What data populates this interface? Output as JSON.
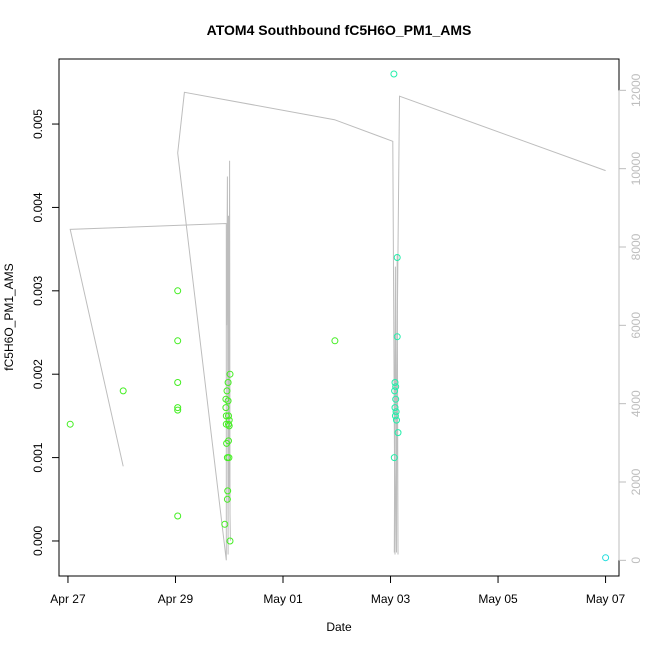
{
  "chart_data": {
    "type": "scatter",
    "title": "ATOM4 Southbound fC5H6O_PM1_AMS",
    "xlabel": "Date",
    "ylabel": "fC5H6O_PM1_AMS",
    "y2label": "",
    "xlim": [
      "2016-04-26T20:00",
      "2016-05-07T06:00"
    ],
    "ylim": [
      -0.00042,
      0.00578
    ],
    "y2lim": [
      -400,
      12800
    ],
    "x_ticks": [
      {
        "date": "2016-04-27T00:00",
        "label": "Apr 27"
      },
      {
        "date": "2016-04-29T00:00",
        "label": "Apr 29"
      },
      {
        "date": "2016-05-01T00:00",
        "label": "May 01"
      },
      {
        "date": "2016-05-03T00:00",
        "label": "May 03"
      },
      {
        "date": "2016-05-05T00:00",
        "label": "May 05"
      },
      {
        "date": "2016-05-07T00:00",
        "label": "May 07"
      }
    ],
    "y_ticks": [
      {
        "value": 0.0,
        "label": "0.000"
      },
      {
        "value": 0.001,
        "label": "0.001"
      },
      {
        "value": 0.002,
        "label": "0.002"
      },
      {
        "value": 0.003,
        "label": "0.003"
      },
      {
        "value": 0.004,
        "label": "0.004"
      },
      {
        "value": 0.005,
        "label": "0.005"
      }
    ],
    "y2_ticks": [
      {
        "value": 0,
        "label": "0"
      },
      {
        "value": 2000,
        "label": "2000"
      },
      {
        "value": 4000,
        "label": "4000"
      },
      {
        "value": 6000,
        "label": "6000"
      },
      {
        "value": 8000,
        "label": "8000"
      },
      {
        "value": 10000,
        "label": "10000"
      },
      {
        "value": 12000,
        "label": "12000"
      }
    ],
    "colors": {
      "line": "#bdbdbd",
      "points_early": "#44ee22",
      "points_late": "#22eeaa",
      "points_last": "#22dddd",
      "axis": "#000000"
    },
    "series": [
      {
        "kind": "points",
        "axis": "left",
        "points": [
          {
            "date": "2016-04-27T01:00",
            "y": 0.0014,
            "c": "points_early"
          },
          {
            "date": "2016-04-28T00:40",
            "y": 0.0018,
            "c": "points_early"
          },
          {
            "date": "2016-04-29T01:00",
            "y": 0.003,
            "c": "points_early"
          },
          {
            "date": "2016-04-29T01:00",
            "y": 0.0024,
            "c": "points_early"
          },
          {
            "date": "2016-04-29T01:00",
            "y": 0.0019,
            "c": "points_early"
          },
          {
            "date": "2016-04-29T01:00",
            "y": 0.0016,
            "c": "points_early"
          },
          {
            "date": "2016-04-29T01:00",
            "y": 0.00157,
            "c": "points_early"
          },
          {
            "date": "2016-04-29T01:00",
            "y": 0.0003,
            "c": "points_early"
          },
          {
            "date": "2016-04-29T22:00",
            "y": 0.0002,
            "c": "points_early"
          },
          {
            "date": "2016-04-29T22:30",
            "y": 0.0017,
            "c": "points_early"
          },
          {
            "date": "2016-04-29T22:30",
            "y": 0.0016,
            "c": "points_early"
          },
          {
            "date": "2016-04-29T22:40",
            "y": 0.0015,
            "c": "points_early"
          },
          {
            "date": "2016-04-29T22:40",
            "y": 0.0014,
            "c": "points_early"
          },
          {
            "date": "2016-04-29T22:50",
            "y": 0.00117,
            "c": "points_early"
          },
          {
            "date": "2016-04-29T23:00",
            "y": 0.0018,
            "c": "points_early"
          },
          {
            "date": "2016-04-29T23:10",
            "y": 0.001,
            "c": "points_early"
          },
          {
            "date": "2016-04-29T23:10",
            "y": 0.0005,
            "c": "points_early"
          },
          {
            "date": "2016-04-29T23:20",
            "y": 0.0006,
            "c": "points_early"
          },
          {
            "date": "2016-04-29T23:30",
            "y": 0.0019,
            "c": "points_early"
          },
          {
            "date": "2016-04-29T23:30",
            "y": 0.00168,
            "c": "points_early"
          },
          {
            "date": "2016-04-29T23:40",
            "y": 0.0015,
            "c": "points_early"
          },
          {
            "date": "2016-04-29T23:40",
            "y": 0.0014,
            "c": "points_early"
          },
          {
            "date": "2016-04-29T23:40",
            "y": 0.0012,
            "c": "points_early"
          },
          {
            "date": "2016-04-29T23:50",
            "y": 0.001,
            "c": "points_early"
          },
          {
            "date": "2016-04-30T00:00",
            "y": 0.00145,
            "c": "points_early"
          },
          {
            "date": "2016-04-30T00:00",
            "y": 0.00138,
            "c": "points_early"
          },
          {
            "date": "2016-04-30T00:20",
            "y": 0.002,
            "c": "points_early"
          },
          {
            "date": "2016-04-30T00:20",
            "y": 0.0,
            "c": "points_early"
          },
          {
            "date": "2016-05-01T23:10",
            "y": 0.0024,
            "c": "points_early"
          },
          {
            "date": "2016-05-03T01:30",
            "y": 0.0056,
            "c": "points_late"
          },
          {
            "date": "2016-05-03T03:00",
            "y": 0.0034,
            "c": "points_late"
          },
          {
            "date": "2016-05-03T03:00",
            "y": 0.00245,
            "c": "points_late"
          },
          {
            "date": "2016-05-03T02:00",
            "y": 0.0019,
            "c": "points_late"
          },
          {
            "date": "2016-05-03T02:20",
            "y": 0.00185,
            "c": "points_late"
          },
          {
            "date": "2016-05-03T01:50",
            "y": 0.0018,
            "c": "points_late"
          },
          {
            "date": "2016-05-03T02:20",
            "y": 0.0017,
            "c": "points_late"
          },
          {
            "date": "2016-05-03T02:00",
            "y": 0.0016,
            "c": "points_late"
          },
          {
            "date": "2016-05-03T02:30",
            "y": 0.00155,
            "c": "points_late"
          },
          {
            "date": "2016-05-03T02:10",
            "y": 0.0015,
            "c": "points_late"
          },
          {
            "date": "2016-05-03T02:40",
            "y": 0.00145,
            "c": "points_late"
          },
          {
            "date": "2016-05-03T03:20",
            "y": 0.0013,
            "c": "points_late"
          },
          {
            "date": "2016-05-03T01:40",
            "y": 0.001,
            "c": "points_late"
          },
          {
            "date": "2016-05-07T00:00",
            "y": -0.0002,
            "c": "points_last"
          }
        ]
      },
      {
        "kind": "line",
        "axis": "right",
        "points": [
          {
            "date": "2016-04-27T01:00",
            "y": 8450
          },
          {
            "date": "2016-04-28T00:40",
            "y": 2400
          },
          {
            "date": "2016-04-27T01:00",
            "y": 8450
          },
          {
            "date": "2016-04-29T22:40",
            "y": 8600
          },
          {
            "date": "2016-04-29T22:40",
            "y": 0
          },
          {
            "date": "2016-04-29T01:00",
            "y": 10400
          },
          {
            "date": "2016-04-29T04:00",
            "y": 11950
          },
          {
            "date": "2016-05-01T23:00",
            "y": 11250
          },
          {
            "date": "2016-05-03T01:00",
            "y": 10700
          },
          {
            "date": "2016-05-03T02:00",
            "y": 150
          },
          {
            "date": "2016-05-03T04:00",
            "y": 11850
          },
          {
            "date": "2016-05-07T00:00",
            "y": 9950
          }
        ]
      },
      {
        "kind": "line",
        "axis": "right",
        "points": [
          {
            "date": "2016-04-29T22:50",
            "y": 6000
          },
          {
            "date": "2016-04-29T23:10",
            "y": 9800
          },
          {
            "date": "2016-04-29T23:30",
            "y": 150
          },
          {
            "date": "2016-04-29T23:40",
            "y": 8800
          },
          {
            "date": "2016-04-29T23:50",
            "y": 1500
          },
          {
            "date": "2016-04-30T00:10",
            "y": 10200
          },
          {
            "date": "2016-04-30T00:20",
            "y": 1200
          },
          {
            "date": "2016-04-30T00:30",
            "y": 500
          }
        ]
      },
      {
        "kind": "line",
        "axis": "right",
        "points": [
          {
            "date": "2016-05-03T01:40",
            "y": 200
          },
          {
            "date": "2016-05-03T02:10",
            "y": 7500
          },
          {
            "date": "2016-05-03T02:40",
            "y": 200
          },
          {
            "date": "2016-05-03T03:00",
            "y": 7800
          },
          {
            "date": "2016-05-03T03:20",
            "y": 150
          }
        ]
      }
    ]
  }
}
